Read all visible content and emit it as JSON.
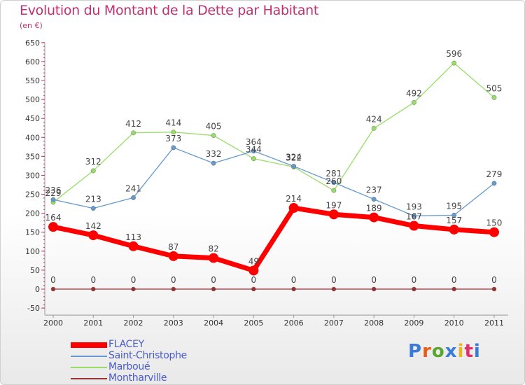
{
  "chart_data": {
    "type": "line",
    "title": "Evolution du Montant de la Dette par Habitant",
    "unit_label": "(en €)",
    "xlabel": "",
    "ylabel": "",
    "x": [
      "2000",
      "2001",
      "2002",
      "2003",
      "2004",
      "2005",
      "2006",
      "2007",
      "2008",
      "2009",
      "2010",
      "2011"
    ],
    "ylim": [
      -50,
      650
    ],
    "yticks": [
      "-50",
      "0",
      "50",
      "100",
      "150",
      "200",
      "250",
      "300",
      "350",
      "400",
      "450",
      "500",
      "550",
      "600",
      "650"
    ],
    "grid": false,
    "legend_position": "bottom-left",
    "series": [
      {
        "name": "FLACEY",
        "color": "#ff0000",
        "values": [
          164,
          142,
          113,
          87,
          82,
          49,
          214,
          197,
          189,
          167,
          157,
          150
        ]
      },
      {
        "name": "Saint-Christophe",
        "color": "#6699cc",
        "values": [
          236,
          213,
          241,
          373,
          332,
          364,
          324,
          281,
          237,
          193,
          195,
          279
        ]
      },
      {
        "name": "Marboué",
        "color": "#99dd66",
        "values": [
          229,
          312,
          412,
          414,
          405,
          344,
          322,
          260,
          424,
          492,
          596,
          505
        ]
      },
      {
        "name": "Montharville",
        "color": "#993333",
        "values": [
          0,
          0,
          0,
          0,
          0,
          0,
          0,
          0,
          0,
          0,
          0,
          0
        ]
      }
    ]
  },
  "branding": {
    "logo_text": "Proxiti",
    "letter_colors": [
      "#3b7bd6",
      "#e85c1a",
      "#5aa52e",
      "#3b7bd6",
      "#e8b81a",
      "#e0306a",
      "#3b7bd6"
    ]
  }
}
